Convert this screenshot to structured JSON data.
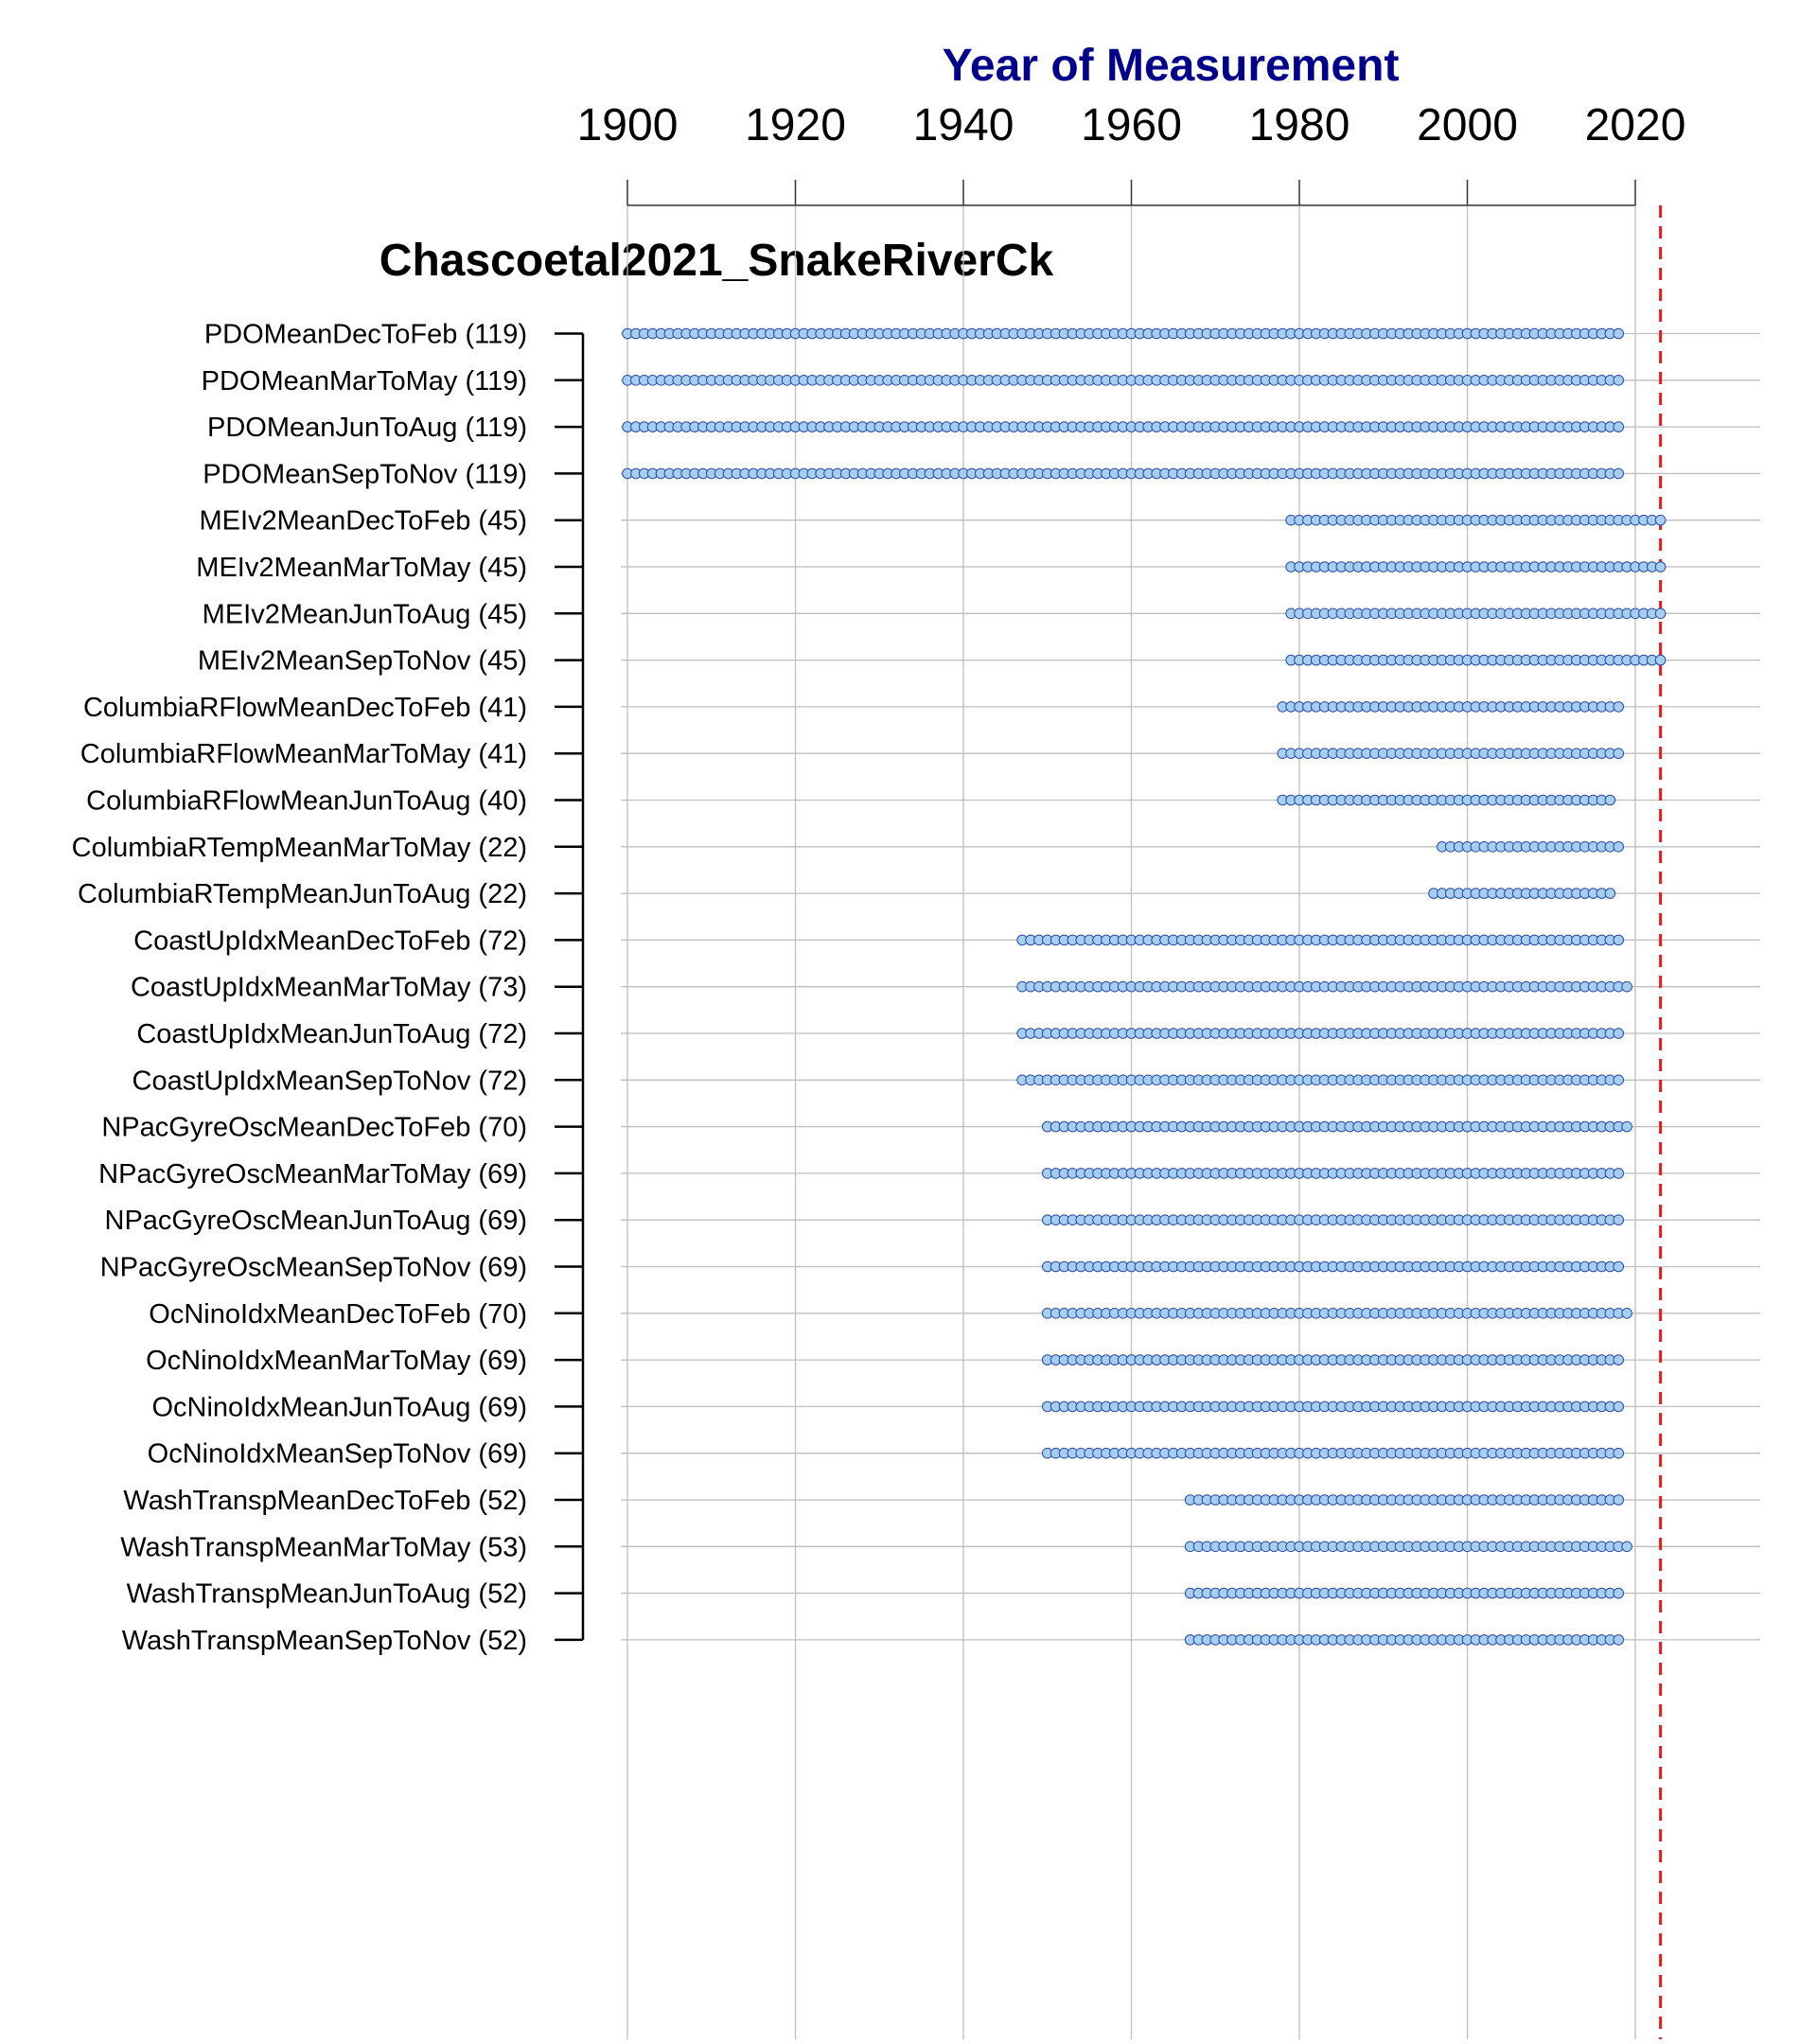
{
  "chart_data": {
    "type": "scatter",
    "title": "Chascoetal2021_SnakeRiverCk",
    "xlabel": "Year of Measurement",
    "xlim": [
      1900,
      2020
    ],
    "xticks": [
      1900,
      1920,
      1940,
      1960,
      1980,
      2000,
      2020
    ],
    "reference_line": 2023,
    "colors": {
      "point_fill": "#A6CDF2",
      "point_stroke": "#2B4C9A",
      "reference_line": "#E8191C",
      "axis_title": "#00008B",
      "grid": "#BEBEBE"
    },
    "grid": true,
    "series": [
      {
        "label": "PDOMeanDecToFeb (119)",
        "start": 1900,
        "end": 2018
      },
      {
        "label": "PDOMeanMarToMay (119)",
        "start": 1900,
        "end": 2018
      },
      {
        "label": "PDOMeanJunToAug (119)",
        "start": 1900,
        "end": 2018
      },
      {
        "label": "PDOMeanSepToNov (119)",
        "start": 1900,
        "end": 2018
      },
      {
        "label": "MEIv2MeanDecToFeb (45)",
        "start": 1979,
        "end": 2023
      },
      {
        "label": "MEIv2MeanMarToMay (45)",
        "start": 1979,
        "end": 2023
      },
      {
        "label": "MEIv2MeanJunToAug (45)",
        "start": 1979,
        "end": 2023
      },
      {
        "label": "MEIv2MeanSepToNov (45)",
        "start": 1979,
        "end": 2023
      },
      {
        "label": "ColumbiaRFlowMeanDecToFeb (41)",
        "start": 1978,
        "end": 2018
      },
      {
        "label": "ColumbiaRFlowMeanMarToMay (41)",
        "start": 1978,
        "end": 2018
      },
      {
        "label": "ColumbiaRFlowMeanJunToAug (40)",
        "start": 1978,
        "end": 2017
      },
      {
        "label": "ColumbiaRTempMeanMarToMay (22)",
        "start": 1997,
        "end": 2018
      },
      {
        "label": "ColumbiaRTempMeanJunToAug (22)",
        "start": 1996,
        "end": 2017
      },
      {
        "label": "CoastUpIdxMeanDecToFeb (72)",
        "start": 1947,
        "end": 2018
      },
      {
        "label": "CoastUpIdxMeanMarToMay (73)",
        "start": 1947,
        "end": 2019
      },
      {
        "label": "CoastUpIdxMeanJunToAug (72)",
        "start": 1947,
        "end": 2018
      },
      {
        "label": "CoastUpIdxMeanSepToNov (72)",
        "start": 1947,
        "end": 2018
      },
      {
        "label": "NPacGyreOscMeanDecToFeb (70)",
        "start": 1950,
        "end": 2019
      },
      {
        "label": "NPacGyreOscMeanMarToMay (69)",
        "start": 1950,
        "end": 2018
      },
      {
        "label": "NPacGyreOscMeanJunToAug (69)",
        "start": 1950,
        "end": 2018
      },
      {
        "label": "NPacGyreOscMeanSepToNov (69)",
        "start": 1950,
        "end": 2018
      },
      {
        "label": "OcNinoIdxMeanDecToFeb (70)",
        "start": 1950,
        "end": 2019
      },
      {
        "label": "OcNinoIdxMeanMarToMay (69)",
        "start": 1950,
        "end": 2018
      },
      {
        "label": "OcNinoIdxMeanJunToAug (69)",
        "start": 1950,
        "end": 2018
      },
      {
        "label": "OcNinoIdxMeanSepToNov (69)",
        "start": 1950,
        "end": 2018
      },
      {
        "label": "WashTranspMeanDecToFeb (52)",
        "start": 1967,
        "end": 2018
      },
      {
        "label": "WashTranspMeanMarToMay (53)",
        "start": 1967,
        "end": 2019
      },
      {
        "label": "WashTranspMeanJunToAug (52)",
        "start": 1967,
        "end": 2018
      },
      {
        "label": "WashTranspMeanSepToNov (52)",
        "start": 1967,
        "end": 2018
      }
    ]
  }
}
